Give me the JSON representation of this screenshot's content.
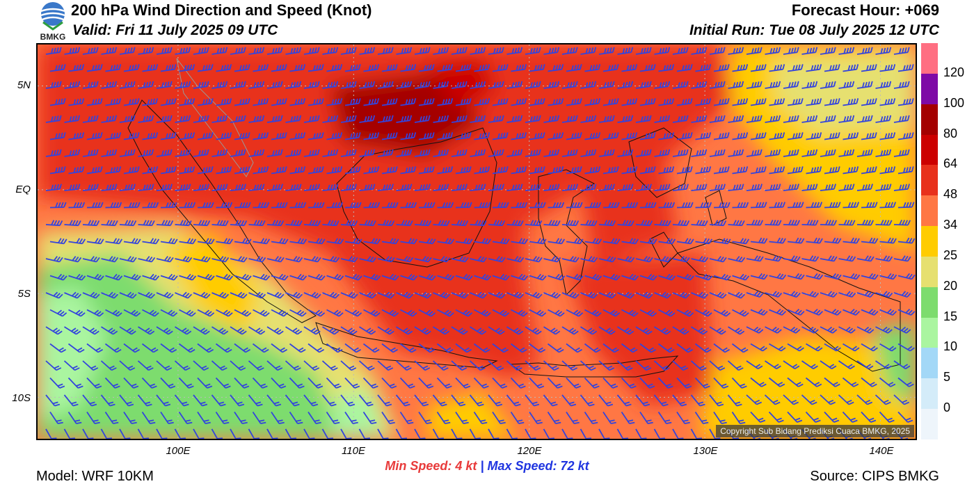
{
  "header": {
    "title": "200 hPa Wind Direction and Speed (Knot)",
    "valid": "Valid: Fri 11 July 2025 09 UTC",
    "forecast_hour": "Forecast Hour: +069",
    "initial_run": "Initial Run: Tue 08 July 2025 12 UTC",
    "logo_text": "BMKG"
  },
  "map": {
    "lat_labels": [
      "5N",
      "EQ",
      "5S",
      "10S"
    ],
    "lon_labels": [
      "100E",
      "110E",
      "120E",
      "130E",
      "140E"
    ],
    "lon_range": [
      92,
      142
    ],
    "lat_range": [
      -12,
      7
    ],
    "copyright": "Copyright Sub Bidang Prediksi Cuaca BMKG, 2025",
    "barb_color": "#3344dd"
  },
  "colorbar": {
    "labels": [
      "120",
      "100",
      "80",
      "64",
      "48",
      "34",
      "25",
      "20",
      "15",
      "10",
      "5",
      "0"
    ],
    "colors": [
      "#ff6f82",
      "#7e0aa6",
      "#a40000",
      "#cc0000",
      "#e8311c",
      "#ff7744",
      "#ffcc00",
      "#e6e070",
      "#7ddc6e",
      "#aaf5a0",
      "#a3d8f7",
      "#d4ecf9",
      "#eef5fb"
    ]
  },
  "footer": {
    "min_speed": "Min Speed:   4 kt",
    "separator": "|",
    "max_speed": "Max Speed:  72 kt",
    "model": "Model: WRF 10KM",
    "source": "Source: CIPS BMKG"
  }
}
